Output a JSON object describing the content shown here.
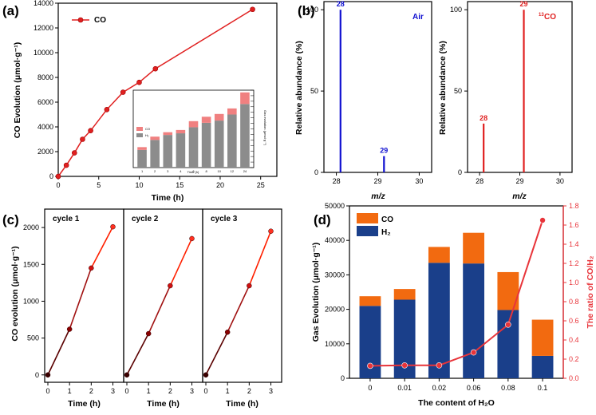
{
  "panels": {
    "a": "(a)",
    "b": "(b)",
    "c": "(c)",
    "d": "(d)"
  },
  "chart_data": [
    {
      "id": "a",
      "type": "line",
      "xlabel": "Time (h)",
      "ylabel": "CO Evolution (μmol·g⁻¹)",
      "xlim": [
        0,
        27
      ],
      "ylim": [
        0,
        14000
      ],
      "xticks": [
        "0",
        "5",
        "10",
        "15",
        "20",
        "25"
      ],
      "yticks": [
        "0",
        "2000",
        "4000",
        "6000",
        "8000",
        "10000",
        "12000",
        "14000"
      ],
      "legend": "top-left",
      "color": "#e02020",
      "series": [
        {
          "name": "CO",
          "x": [
            0,
            1,
            2,
            3,
            4,
            6,
            8,
            10,
            12,
            24
          ],
          "y": [
            0,
            900,
            1900,
            3000,
            3700,
            5400,
            6800,
            7600,
            8700,
            13500
          ]
        }
      ],
      "inset": {
        "type": "bar",
        "xlabel": "Time (h)",
        "ylabel": "Gas evolution (μmol·g⁻¹)",
        "categories": [
          "1",
          "2",
          "3",
          "4",
          "6",
          "8",
          "10",
          "12",
          "24"
        ],
        "series": [
          {
            "name": "H₂",
            "color": "#8c8c8c",
            "values": [
              1600,
              2500,
              2950,
              3100,
              3650,
              4050,
              4250,
              4800,
              5750
            ]
          },
          {
            "name": "CO",
            "color": "#f08080",
            "values": [
              250,
              300,
              250,
              300,
              550,
              550,
              600,
              550,
              1050
            ]
          }
        ],
        "ylim": [
          0,
          7000
        ],
        "legend": "top-left"
      }
    },
    {
      "id": "b_air",
      "type": "bar",
      "xlabel": "m/z",
      "ylabel": "Relative abundance (%)",
      "xlim": [
        27.7,
        30.3
      ],
      "ylim": [
        0,
        105
      ],
      "xticks": [
        "28",
        "29",
        "30"
      ],
      "yticks": [
        "0",
        "50",
        "100"
      ],
      "annotation": "Air",
      "color": "#1010d0",
      "peaks": [
        {
          "x": 28.1,
          "y": 100,
          "label": "28"
        },
        {
          "x": 29.15,
          "y": 10,
          "label": "29"
        }
      ]
    },
    {
      "id": "b_13co",
      "type": "bar",
      "xlabel": "m/z",
      "ylabel": "Relative abundance (%)",
      "xlim": [
        27.7,
        30.3
      ],
      "ylim": [
        0,
        105
      ],
      "xticks": [
        "28",
        "29",
        "30"
      ],
      "yticks": [
        "0",
        "50",
        "100"
      ],
      "annotation_sup": "13",
      "annotation": "CO",
      "color": "#e02020",
      "peaks": [
        {
          "x": 28.1,
          "y": 30,
          "label": "28"
        },
        {
          "x": 29.1,
          "y": 100,
          "label": "29"
        }
      ]
    },
    {
      "id": "c",
      "type": "line",
      "ylabel": "CO evolution (μmol·g⁻¹)",
      "ylim": [
        -100,
        2250
      ],
      "yticks": [
        "0",
        "500",
        "1000",
        "1500",
        "2000"
      ],
      "cycles": [
        {
          "label": "cycle 1",
          "xlabel": "Time (h)",
          "xticks": [
            "0",
            "1",
            "2",
            "3"
          ],
          "x": [
            0,
            1,
            2,
            3
          ],
          "y": [
            0,
            620,
            1450,
            2010
          ]
        },
        {
          "label": "cycle 2",
          "xlabel": "Time (h)",
          "xticks": [
            "0",
            "1",
            "2",
            "3"
          ],
          "x": [
            0,
            1,
            2,
            3
          ],
          "y": [
            0,
            560,
            1210,
            1850
          ]
        },
        {
          "label": "cycle 3",
          "xlabel": "Time (h)",
          "xticks": [
            "0",
            "1",
            "2",
            "3"
          ],
          "x": [
            0,
            1,
            2,
            3
          ],
          "y": [
            0,
            580,
            1210,
            1950
          ]
        }
      ],
      "colors": [
        "#5a0000",
        "#ff2000"
      ]
    },
    {
      "id": "d",
      "type": "bar",
      "xlabel": "The content of H₂O",
      "ylabel": "Gas Evolution (μmol·g⁻¹)",
      "ylabel_right": "The ratio of CO/H₂",
      "categories": [
        "0",
        "0.01",
        "0.02",
        "0.06",
        "0.08",
        "0.1"
      ],
      "ylim": [
        0,
        50000
      ],
      "ylim_right": [
        0,
        1.8
      ],
      "yticks": [
        "0",
        "10000",
        "20000",
        "30000",
        "40000",
        "50000"
      ],
      "yticks_right": [
        "0.0",
        "0.2",
        "0.4",
        "0.6",
        "0.8",
        "1.0",
        "1.2",
        "1.4",
        "1.6",
        "1.8"
      ],
      "legend": "top-left",
      "series": [
        {
          "name": "H₂",
          "color": "#1a3f8a",
          "values": [
            21000,
            22800,
            33500,
            33300,
            19800,
            6500
          ]
        },
        {
          "name": "CO",
          "color": "#f26a10",
          "values": [
            2800,
            3100,
            4600,
            8900,
            11000,
            10500
          ]
        }
      ],
      "ratio": {
        "color": "#e8343a",
        "values": [
          0.13,
          0.135,
          0.135,
          0.27,
          0.56,
          1.65
        ]
      }
    }
  ]
}
